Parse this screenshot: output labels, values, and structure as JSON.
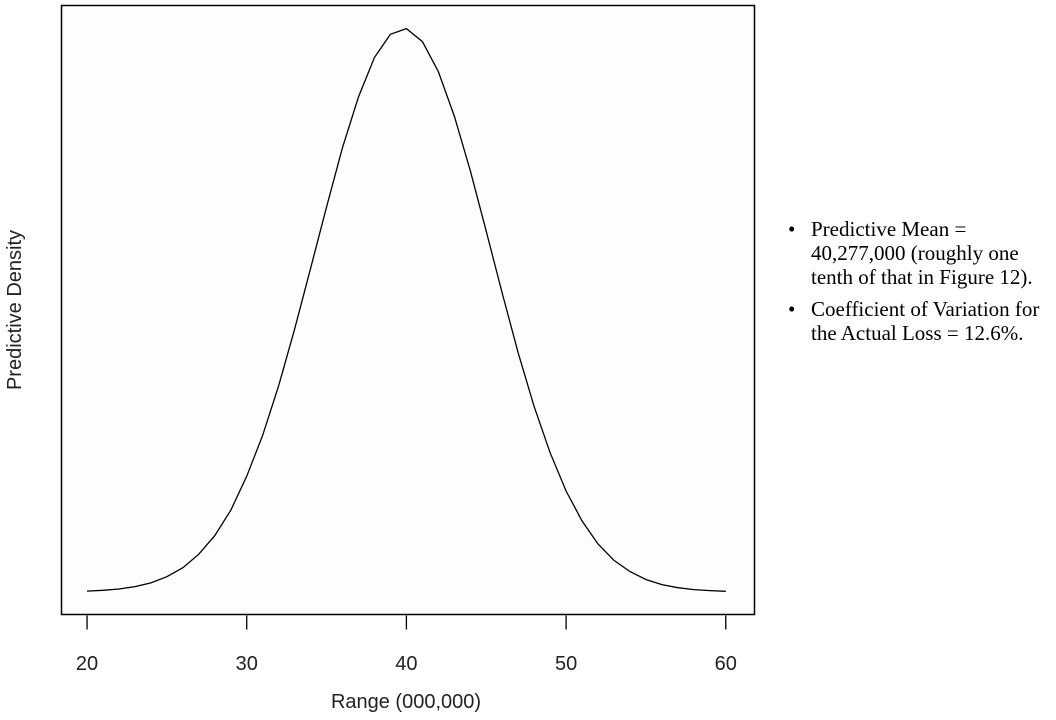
{
  "chart_data": {
    "type": "line",
    "title": "",
    "xlabel": "Range (000,000)",
    "ylabel": "Predictive Density",
    "xlim": [
      18.4,
      61.8
    ],
    "ylim": [
      -0.04,
      1.04
    ],
    "xticks": [
      20,
      30,
      40,
      50,
      60
    ],
    "xtick_labels": [
      "20",
      "30",
      "40",
      "50",
      "60"
    ],
    "yticks": [],
    "grid": false,
    "series": [
      {
        "name": "predictive density",
        "x": [
          20,
          21,
          22,
          23,
          24,
          25,
          26,
          27,
          28,
          29,
          30,
          31,
          32,
          33,
          34,
          35,
          36,
          37,
          38,
          39,
          40,
          41,
          42,
          43,
          44,
          45,
          46,
          47,
          48,
          49,
          50,
          51,
          52,
          53,
          54,
          55,
          56,
          57,
          58,
          59,
          60
        ],
        "y": [
          0.0015,
          0.0029,
          0.0053,
          0.0094,
          0.016,
          0.027,
          0.043,
          0.067,
          0.1,
          0.145,
          0.205,
          0.278,
          0.366,
          0.466,
          0.574,
          0.683,
          0.788,
          0.878,
          0.948,
          0.989,
          0.999,
          0.976,
          0.923,
          0.844,
          0.747,
          0.64,
          0.53,
          0.424,
          0.329,
          0.247,
          0.179,
          0.126,
          0.085,
          0.056,
          0.036,
          0.022,
          0.013,
          0.0075,
          0.0042,
          0.0023,
          0.0012
        ]
      }
    ]
  },
  "notes": [
    {
      "bullet": "•",
      "text": "Predictive Mean = 40,277,000 (roughly one tenth of that in Figure 12)."
    },
    {
      "bullet": "•",
      "text": "Coefficient of Variation for the Actual Loss = 12.6%."
    }
  ]
}
